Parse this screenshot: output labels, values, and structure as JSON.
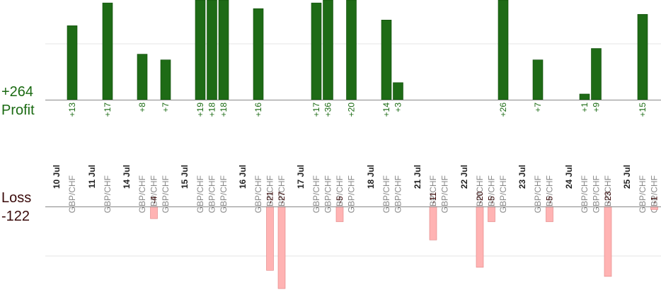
{
  "summary": {
    "profit_total": "+264",
    "profit_label": "Profit",
    "loss_label": "Loss",
    "loss_total": "-122"
  },
  "colors": {
    "profit_bar": "#1e6b16",
    "profit_bar_dark": "#0d4a08",
    "profit_text": "#1a6a12",
    "loss_bar": "#ffb3b3",
    "loss_bar_edge": "#e08080",
    "loss_text": "#3a0a0a",
    "date_text": "#222222",
    "symbol_text": "#888888",
    "grid": "#e6e6e6",
    "axis": "#888888"
  },
  "chart_data": {
    "type": "bar",
    "title": "",
    "unit": "pips",
    "profit_ylim": [
      0,
      24
    ],
    "loss_ylim": [
      -27,
      0
    ],
    "date_groups": [
      {
        "date": "10 Jul",
        "trades": [
          {
            "symbol": "GBP/CHF",
            "value": 13
          }
        ]
      },
      {
        "date": "11 Jul",
        "trades": [
          {
            "symbol": "GBP/CHF",
            "value": 17
          }
        ]
      },
      {
        "date": "14 Jul",
        "trades": [
          {
            "symbol": "GBP/CHF",
            "value": 8
          },
          {
            "symbol": "GBP/CHF",
            "value": -4
          },
          {
            "symbol": "GBP/CHF",
            "value": 7
          }
        ]
      },
      {
        "date": "15 Jul",
        "trades": [
          {
            "symbol": "GBP/CHF",
            "value": 19
          },
          {
            "symbol": "GBP/CHF",
            "value": 18
          },
          {
            "symbol": "GBP/CHF",
            "value": 18
          }
        ]
      },
      {
        "date": "16 Jul",
        "trades": [
          {
            "symbol": "GBP/CHF",
            "value": 16
          },
          {
            "symbol": "GBP/CHF",
            "value": -21
          },
          {
            "symbol": "GBP/CHF",
            "value": -27
          }
        ]
      },
      {
        "date": "17 Jul",
        "trades": [
          {
            "symbol": "GBP/CHF",
            "value": 17
          },
          {
            "symbol": "GBP/CHF",
            "value": 36
          },
          {
            "symbol": "GBP/CHF",
            "value": -5
          },
          {
            "symbol": "GBP/CHF",
            "value": 20
          }
        ]
      },
      {
        "date": "18 Jul",
        "trades": [
          {
            "symbol": "GBP/CHF",
            "value": 14
          },
          {
            "symbol": "GBP/CHF",
            "value": 3
          }
        ]
      },
      {
        "date": "21 Jul",
        "trades": [
          {
            "symbol": "GBP/CHF",
            "value": -11
          },
          {
            "symbol": "GBP/CHF",
            "value": 0
          }
        ]
      },
      {
        "date": "22 Jul",
        "trades": [
          {
            "symbol": "GBP/CHF",
            "value": -20
          },
          {
            "symbol": "GBP/CHF",
            "value": -5
          },
          {
            "symbol": "GBP/CHF",
            "value": 26
          }
        ]
      },
      {
        "date": "23 Jul",
        "trades": [
          {
            "symbol": "GBP/CHF",
            "value": 7
          },
          {
            "symbol": "GBP/CHF",
            "value": -5
          }
        ]
      },
      {
        "date": "24 Jul",
        "trades": [
          {
            "symbol": "GBP/CHF",
            "value": 1
          },
          {
            "symbol": "GBP/CHF",
            "value": 9
          },
          {
            "symbol": "GBP/CHF",
            "value": -23
          }
        ]
      },
      {
        "date": "25 Jul",
        "trades": [
          {
            "symbol": "GBP/CHF",
            "value": 15
          },
          {
            "symbol": "GBP/CHF",
            "value": -1
          }
        ]
      }
    ]
  }
}
